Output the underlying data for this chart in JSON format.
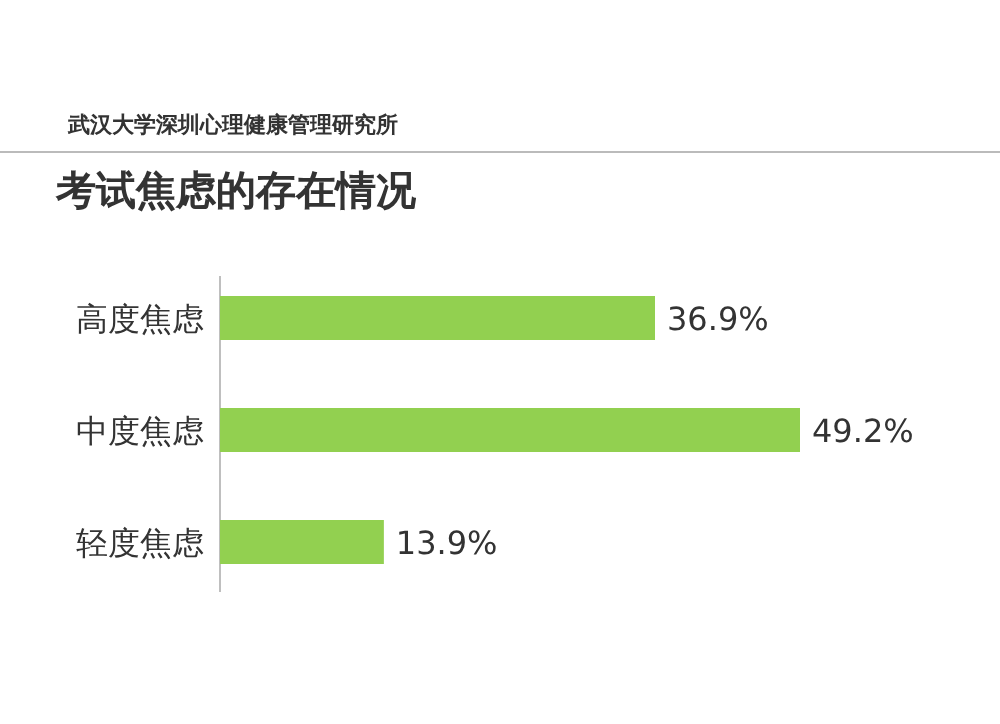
{
  "chart_data": {
    "type": "bar",
    "orientation": "horizontal",
    "title": "考试焦虑的存在情况",
    "categories": [
      "高度焦虑",
      "中度焦虑",
      "轻度焦虑"
    ],
    "values": [
      36.9,
      49.2,
      13.9
    ],
    "value_labels": [
      "36.9%",
      "49.2%",
      "13.9%"
    ],
    "color": "#92d050",
    "annotations": [
      "武汉大学深圳心理健康管理研究所"
    ]
  }
}
